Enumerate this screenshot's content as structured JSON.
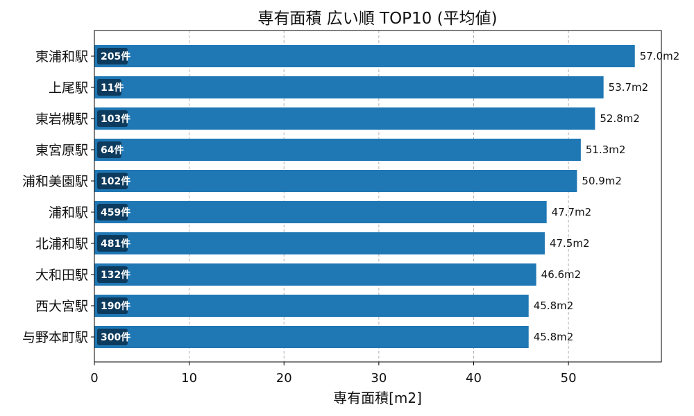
{
  "chart_data": {
    "type": "bar",
    "orientation": "horizontal",
    "title": "専有面積 広い順 TOP10 (平均値)",
    "xlabel": "専有面積[m2]",
    "ylabel": "",
    "xlim": [
      0,
      60
    ],
    "xticks": [
      0,
      10,
      20,
      30,
      40,
      50
    ],
    "grid": "x-dashed",
    "bar_color": "#1f77b4",
    "badge_color": "#0d3b5e",
    "categories": [
      "東浦和駅",
      "上尾駅",
      "東岩槻駅",
      "東宮原駅",
      "浦和美園駅",
      "浦和駅",
      "北浦和駅",
      "大和田駅",
      "西大宮駅",
      "与野本町駅"
    ],
    "values": [
      57.0,
      53.7,
      52.8,
      51.3,
      50.9,
      47.7,
      47.5,
      46.6,
      45.8,
      45.8
    ],
    "value_labels": [
      "57.0m2",
      "53.7m2",
      "52.8m2",
      "51.3m2",
      "50.9m2",
      "47.7m2",
      "47.5m2",
      "46.6m2",
      "45.8m2",
      "45.8m2"
    ],
    "counts": [
      "205件",
      "11件",
      "103件",
      "64件",
      "102件",
      "459件",
      "481件",
      "132件",
      "190件",
      "300件"
    ]
  }
}
